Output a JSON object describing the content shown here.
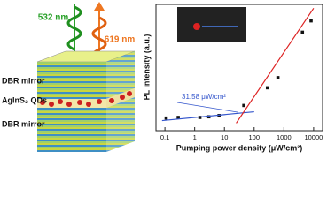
{
  "diagram": {
    "beams": [
      "532 nm",
      "619 nm"
    ],
    "layers": [
      "DBR mirror",
      "AgInS₂ QDs",
      "DBR mirror"
    ]
  },
  "chart_data": {
    "type": "scatter",
    "x_label": "Pumping power density (μW/cm²)",
    "y_label": "PL intensity (a.u.)",
    "annotation": "31.58 μW/cm²",
    "xscale": "log",
    "xlim": [
      0.05,
      20000
    ],
    "xticks": [
      0.1,
      1,
      10,
      100,
      1000,
      10000
    ],
    "ylim": [
      0,
      100
    ],
    "series": [
      {
        "color": "#111111",
        "x": [
          0.11,
          0.28,
          1.5,
          3,
          6.6,
          45,
          280,
          630,
          4200,
          8200
        ],
        "values": [
          10,
          10.5,
          10.5,
          11,
          12,
          20,
          34,
          42,
          78,
          87
        ]
      },
      {
        "color": "#3355cc",
        "x": [
          0.08,
          100
        ],
        "values": [
          8,
          15
        ]
      },
      {
        "color": "#dd2222",
        "x": [
          25,
          10000
        ],
        "values": [
          6,
          97
        ]
      }
    ]
  }
}
